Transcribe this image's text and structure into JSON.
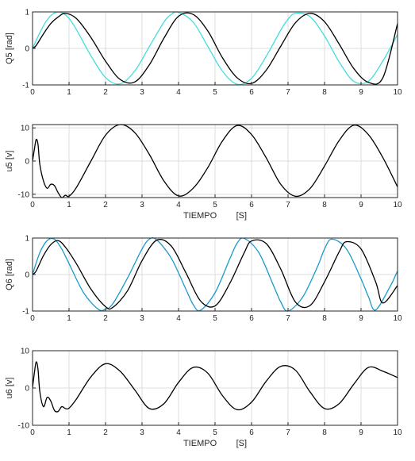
{
  "chart_data": [
    {
      "type": "line",
      "ylabel": "Q5 [rad]",
      "xlabel": "",
      "xlim": [
        0,
        10
      ],
      "ylim": [
        -1,
        1
      ],
      "xticks": [
        0,
        1,
        2,
        3,
        4,
        5,
        6,
        7,
        8,
        9,
        10
      ],
      "yticks": [
        -1,
        0,
        1
      ],
      "grid": true,
      "series": [
        {
          "color": "#44dddd",
          "x": [
            0,
            0.2,
            0.4,
            0.6,
            0.8,
            1.0,
            1.2,
            1.6,
            2.0,
            2.4,
            2.8,
            3.2,
            3.6,
            3.8,
            4.0,
            4.4,
            4.8,
            5.2,
            5.6,
            6.0,
            6.4,
            6.8,
            7.0,
            7.2,
            7.6,
            8.0,
            8.4,
            8.8,
            9.2,
            9.6,
            10.0
          ],
          "y": [
            0.0,
            0.43,
            0.78,
            0.97,
            0.98,
            0.82,
            0.52,
            -0.2,
            -0.8,
            -0.97,
            -0.62,
            0.05,
            0.72,
            0.93,
            0.99,
            0.72,
            0.06,
            -0.62,
            -0.98,
            -0.82,
            -0.22,
            0.5,
            0.8,
            0.96,
            0.87,
            0.34,
            -0.37,
            -0.9,
            -0.9,
            -0.34,
            0.38
          ]
        },
        {
          "color": "#000000",
          "x": [
            0,
            0.1,
            0.3,
            0.5,
            0.7,
            0.9,
            1.2,
            1.6,
            2.0,
            2.4,
            2.8,
            3.2,
            3.6,
            4.0,
            4.4,
            4.8,
            5.2,
            5.6,
            6.0,
            6.4,
            6.8,
            7.2,
            7.6,
            8.0,
            8.4,
            8.8,
            9.2,
            9.6,
            10.0
          ],
          "y": [
            0.0,
            0.08,
            0.4,
            0.68,
            0.86,
            0.96,
            0.82,
            0.3,
            -0.35,
            -0.85,
            -0.92,
            -0.45,
            0.28,
            0.88,
            0.93,
            0.48,
            -0.25,
            -0.8,
            -0.96,
            -0.6,
            0.06,
            0.7,
            0.96,
            0.73,
            0.12,
            -0.55,
            -0.93,
            -0.8,
            0.68
          ]
        }
      ]
    },
    {
      "type": "line",
      "ylabel": "u5 [v]",
      "xlabel": "TIEMPO        [S]",
      "xlim": [
        0,
        10
      ],
      "ylim": [
        -11,
        11
      ],
      "xticks": [
        0,
        1,
        2,
        3,
        4,
        5,
        6,
        7,
        8,
        9,
        10
      ],
      "yticks": [
        -10,
        0,
        10
      ],
      "grid": true,
      "series": [
        {
          "color": "#000000",
          "x": [
            0,
            0.05,
            0.1,
            0.15,
            0.2,
            0.3,
            0.4,
            0.5,
            0.6,
            0.7,
            0.8,
            0.9,
            1.0,
            1.2,
            1.6,
            2.0,
            2.4,
            2.8,
            3.2,
            3.6,
            4.0,
            4.4,
            4.8,
            5.2,
            5.6,
            6.0,
            6.4,
            6.8,
            7.2,
            7.6,
            8.0,
            8.4,
            8.8,
            9.2,
            9.6,
            10.0
          ],
          "y": [
            0,
            3.5,
            6.5,
            5.0,
            -1.0,
            -6.0,
            -8.2,
            -7.0,
            -7.4,
            -9.5,
            -11.0,
            -10.3,
            -10.6,
            -8.0,
            0.0,
            7.8,
            11.0,
            8.6,
            2.0,
            -6.0,
            -10.5,
            -8.2,
            -2.0,
            6.0,
            10.7,
            8.0,
            1.0,
            -7.0,
            -10.6,
            -8.3,
            -1.5,
            6.2,
            10.8,
            8.0,
            1.0,
            -7.8
          ]
        }
      ]
    },
    {
      "type": "line",
      "ylabel": "Q6 [rad]",
      "xlabel": "",
      "xlim": [
        0,
        10
      ],
      "ylim": [
        -1,
        1
      ],
      "xticks": [
        0,
        1,
        2,
        3,
        4,
        5,
        6,
        7,
        8,
        9,
        10
      ],
      "yticks": [
        -1,
        0,
        1
      ],
      "grid": true,
      "series": [
        {
          "color": "#1a9ac9",
          "x": [
            0,
            0.2,
            0.4,
            0.6,
            0.8,
            1.0,
            1.4,
            1.8,
            2.0,
            2.2,
            2.6,
            3.0,
            3.2,
            3.4,
            3.8,
            4.2,
            4.4,
            4.6,
            5.0,
            5.4,
            5.6,
            5.8,
            6.2,
            6.6,
            6.8,
            7.0,
            7.4,
            7.8,
            8.0,
            8.2,
            8.6,
            9.0,
            9.2,
            9.4,
            9.8,
            10.0
          ],
          "y": [
            0.0,
            0.6,
            0.93,
            0.97,
            0.7,
            0.3,
            -0.5,
            -0.95,
            -0.95,
            -0.8,
            -0.1,
            0.7,
            0.97,
            0.95,
            0.45,
            -0.4,
            -0.82,
            -0.98,
            -0.5,
            0.42,
            0.85,
            0.99,
            0.6,
            -0.3,
            -0.75,
            -1.0,
            -0.62,
            0.2,
            0.7,
            0.97,
            0.7,
            -0.12,
            -0.6,
            -0.97,
            -0.32,
            0.1
          ]
        },
        {
          "color": "#000000",
          "x": [
            0,
            0.1,
            0.3,
            0.5,
            0.7,
            0.9,
            1.2,
            1.6,
            2.0,
            2.2,
            2.6,
            3.0,
            3.4,
            3.8,
            4.2,
            4.6,
            5.0,
            5.4,
            5.8,
            6.0,
            6.4,
            6.8,
            7.2,
            7.6,
            8.0,
            8.4,
            8.6,
            9.0,
            9.4,
            9.6,
            10.0
          ],
          "y": [
            0.0,
            0.1,
            0.52,
            0.82,
            0.93,
            0.75,
            0.3,
            -0.4,
            -0.88,
            -0.9,
            -0.45,
            0.38,
            0.94,
            0.78,
            0.05,
            -0.72,
            -0.86,
            -0.25,
            0.6,
            0.92,
            0.85,
            0.15,
            -0.75,
            -0.85,
            -0.2,
            0.62,
            0.9,
            0.7,
            -0.2,
            -0.78,
            -0.3
          ]
        }
      ]
    },
    {
      "type": "line",
      "ylabel": "u6 [v]",
      "xlabel": "TIEMPO        [S]",
      "xlim": [
        0,
        10
      ],
      "ylim": [
        -10,
        10
      ],
      "xticks": [
        0,
        1,
        2,
        3,
        4,
        5,
        6,
        7,
        8,
        9,
        10
      ],
      "yticks": [
        -10,
        0,
        10
      ],
      "grid": true,
      "series": [
        {
          "color": "#000000",
          "x": [
            0,
            0.05,
            0.1,
            0.15,
            0.2,
            0.3,
            0.4,
            0.5,
            0.6,
            0.7,
            0.8,
            0.9,
            1.0,
            1.2,
            1.6,
            2.0,
            2.4,
            2.8,
            3.2,
            3.6,
            4.0,
            4.4,
            4.8,
            5.2,
            5.6,
            6.0,
            6.4,
            6.8,
            7.2,
            7.6,
            8.0,
            8.4,
            8.8,
            9.2,
            9.6,
            10.0
          ],
          "y": [
            0,
            4.0,
            7.0,
            5.0,
            -1.0,
            -5.0,
            -2.5,
            -3.5,
            -6.0,
            -6.3,
            -5.0,
            -5.5,
            -5.4,
            -3.0,
            3.0,
            6.5,
            4.5,
            -0.5,
            -5.5,
            -4.2,
            1.5,
            5.5,
            4.0,
            -2.0,
            -5.8,
            -3.8,
            1.8,
            5.8,
            4.8,
            -1.0,
            -5.5,
            -4.2,
            1.0,
            5.5,
            4.5,
            2.8
          ]
        }
      ]
    }
  ]
}
